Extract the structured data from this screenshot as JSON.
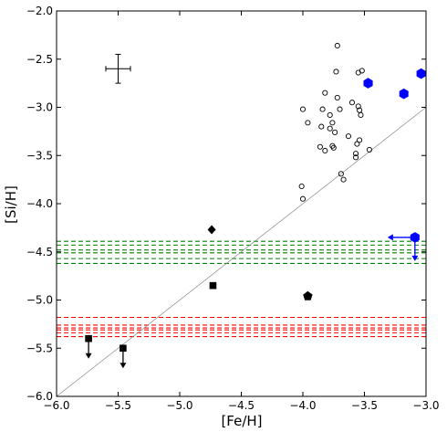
{
  "chart_data": {
    "type": "scatter",
    "xlabel": "[Fe/H]",
    "ylabel": "[Si/H]",
    "xlim": [
      -6.0,
      -3.0
    ],
    "ylim": [
      -6.0,
      -2.0
    ],
    "xticks": [
      -6.0,
      -5.5,
      -5.0,
      -4.5,
      -4.0,
      -3.5,
      -3.0
    ],
    "yticks": [
      -6.0,
      -5.5,
      -5.0,
      -4.5,
      -4.0,
      -3.5,
      -3.0,
      -2.5,
      -2.0
    ],
    "xtick_labels": [
      "−6.0",
      "−5.5",
      "−5.0",
      "−4.5",
      "−4.0",
      "−3.5",
      "−3.0"
    ],
    "ytick_labels": [
      "−6.0",
      "−5.5",
      "−5.0",
      "−4.5",
      "−4.0",
      "−3.5",
      "−3.0",
      "−2.5",
      "−2.0"
    ],
    "grid": false,
    "diagonal_line": {
      "x": [
        -6.0,
        -3.0
      ],
      "y": [
        -6.0,
        -3.0
      ],
      "color": "#888888"
    },
    "error_bar": {
      "x": -5.5,
      "y": -2.6,
      "xerr": 0.1,
      "yerr": 0.15
    },
    "open_circles": {
      "color": "#000000",
      "points": [
        [
          -3.72,
          -2.36
        ],
        [
          -3.55,
          -2.64
        ],
        [
          -3.52,
          -2.62
        ],
        [
          -3.73,
          -2.63
        ],
        [
          -3.82,
          -2.85
        ],
        [
          -3.72,
          -2.9
        ],
        [
          -3.6,
          -2.95
        ],
        [
          -3.55,
          -2.99
        ],
        [
          -4.0,
          -3.02
        ],
        [
          -3.84,
          -3.02
        ],
        [
          -3.7,
          -3.02
        ],
        [
          -3.78,
          -3.08
        ],
        [
          -3.54,
          -3.03
        ],
        [
          -3.53,
          -3.08
        ],
        [
          -3.76,
          -3.16
        ],
        [
          -3.96,
          -3.16
        ],
        [
          -3.78,
          -3.22
        ],
        [
          -3.85,
          -3.2
        ],
        [
          -3.74,
          -3.26
        ],
        [
          -3.63,
          -3.3
        ],
        [
          -3.86,
          -3.41
        ],
        [
          -3.76,
          -3.4
        ],
        [
          -3.75,
          -3.42
        ],
        [
          -3.54,
          -3.34
        ],
        [
          -3.56,
          -3.38
        ],
        [
          -3.82,
          -3.45
        ],
        [
          -3.57,
          -3.48
        ],
        [
          -3.57,
          -3.52
        ],
        [
          -3.46,
          -3.44
        ],
        [
          -3.69,
          -3.69
        ],
        [
          -3.67,
          -3.75
        ],
        [
          -4.01,
          -3.82
        ],
        [
          -4.0,
          -3.95
        ]
      ]
    },
    "blue_hexagons": {
      "color": "#0000ff",
      "points": [
        [
          -3.47,
          -2.75
        ],
        [
          -3.18,
          -2.86
        ],
        [
          -3.04,
          -2.65
        ]
      ]
    },
    "blue_limit": {
      "x": -3.09,
      "y": -4.35,
      "color": "#0000ff"
    },
    "diamond": {
      "x": -4.74,
      "y": -4.27
    },
    "squares": [
      [
        -4.73,
        -4.85
      ]
    ],
    "squares_upper_limits": [
      [
        -5.74,
        -5.4
      ],
      [
        -5.46,
        -5.5
      ]
    ],
    "pentagon": {
      "x": -3.96,
      "y": -4.96
    },
    "green_dashed_lines": {
      "color": "#008000",
      "y": [
        -4.39,
        -4.43,
        -4.48,
        -4.51,
        -4.57,
        -4.62
      ]
    },
    "red_dashed_lines": {
      "color": "#ff0000",
      "y": [
        -5.18,
        -5.26,
        -5.29,
        -5.31,
        -5.34,
        -5.38
      ]
    }
  }
}
